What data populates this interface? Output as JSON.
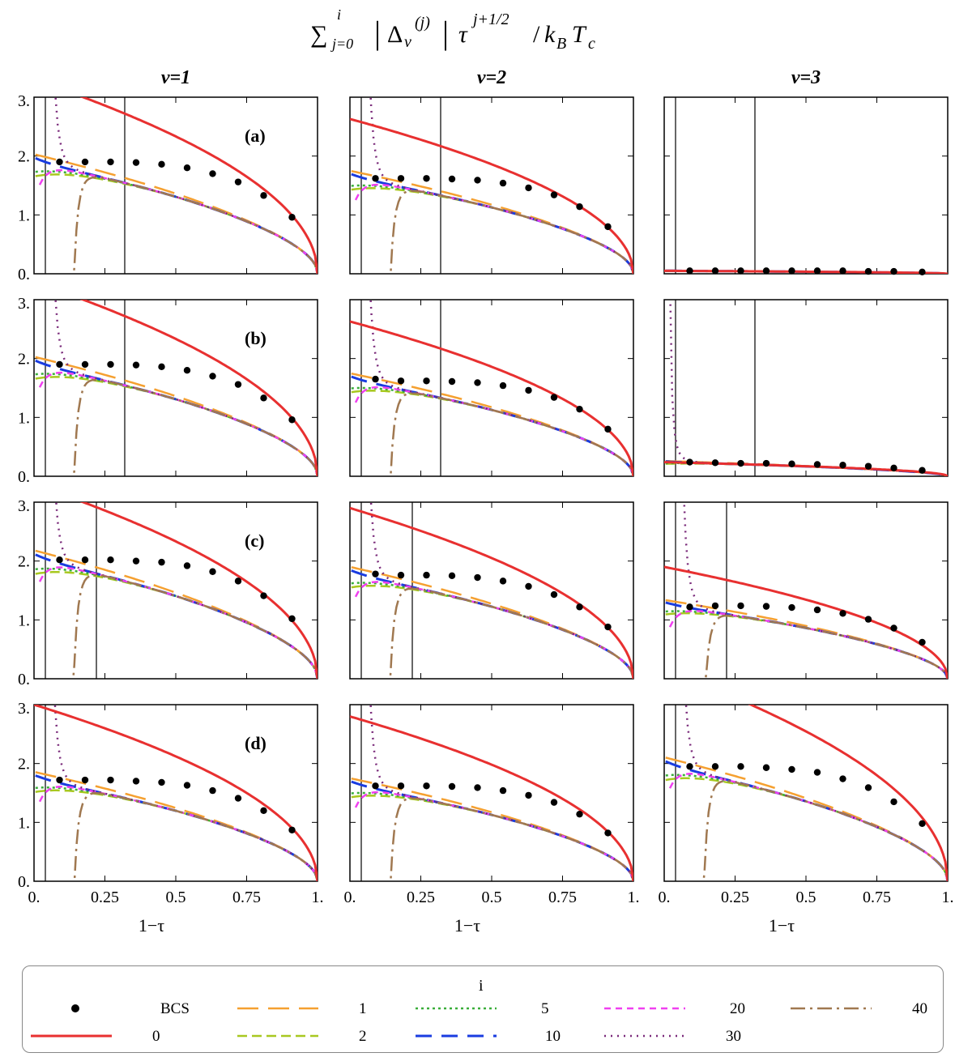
{
  "figure": {
    "title_parts": {
      "sum": "∑",
      "sub": "j=0",
      "sup": "i",
      "delta": "Δ",
      "nu": "ν",
      "j": "(j)",
      "tau": "τ",
      "exp": "j+1/2",
      "kb": "k",
      "B": "B",
      "T": "T",
      "c": "c"
    },
    "column_titles": [
      "ν=1",
      "ν=2",
      "ν=3"
    ],
    "row_labels": [
      "(a)",
      "(b)",
      "(c)",
      "(d)"
    ],
    "x_label": "1−τ",
    "x_ticks": [
      "0.",
      "0.25",
      "0.5",
      "0.75",
      "1."
    ],
    "y_ticks": [
      "0.",
      "1.",
      "2.",
      "3."
    ]
  },
  "legend": {
    "title": "i",
    "entries": [
      {
        "label": "BCS",
        "style": "dots",
        "color": "#000000"
      },
      {
        "label": "1",
        "style": "longdash",
        "color": "#f5a030"
      },
      {
        "label": "5",
        "style": "dotted-green",
        "color": "#3aae3a"
      },
      {
        "label": "20",
        "style": "dashed-magenta",
        "color": "#f040f0"
      },
      {
        "label": "40",
        "style": "dashdot",
        "color": "#a07850"
      },
      {
        "label": "0",
        "style": "solid",
        "color": "#e83030"
      },
      {
        "label": "2",
        "style": "dashed",
        "color": "#a8c820"
      },
      {
        "label": "10",
        "style": "bigdash",
        "color": "#1a3ce0"
      },
      {
        "label": "30",
        "style": "dots-purple",
        "color": "#7a2a7a"
      }
    ]
  },
  "chart_data": {
    "type": "line",
    "layout": "grid 4 rows x 3 columns",
    "xlabel": "1−τ",
    "xlim": [
      0,
      1
    ],
    "ylim": [
      0,
      3
    ],
    "series_names": [
      "BCS",
      "0",
      "1",
      "2",
      "5",
      "10",
      "20",
      "30",
      "40"
    ],
    "colors": {
      "BCS": "#000000",
      "0": "#e83030",
      "1": "#f5a030",
      "2": "#a8c820",
      "5": "#3aae3a",
      "10": "#1a3ce0",
      "20": "#f040f0",
      "30": "#7a2a7a",
      "40": "#a07850"
    },
    "panels": [
      {
        "row": "(a)",
        "col": "ν=1",
        "bcs_amp": 1.88,
        "i0_amp": 3.3,
        "vlines": [
          0.04,
          0.32
        ],
        "bcs_points": [
          [
            0.09,
            1.9
          ],
          [
            0.18,
            1.9
          ],
          [
            0.27,
            1.9
          ],
          [
            0.36,
            1.89
          ],
          [
            0.45,
            1.86
          ],
          [
            0.54,
            1.8
          ],
          [
            0.63,
            1.7
          ],
          [
            0.72,
            1.56
          ],
          [
            0.81,
            1.33
          ],
          [
            0.91,
            0.96
          ]
        ]
      },
      {
        "row": "(a)",
        "col": "ν=2",
        "bcs_amp": 1.62,
        "i0_amp": 2.63,
        "vlines": [
          0.04,
          0.32
        ],
        "bcs_points": [
          [
            0.09,
            1.62
          ],
          [
            0.18,
            1.62
          ],
          [
            0.27,
            1.62
          ],
          [
            0.36,
            1.61
          ],
          [
            0.45,
            1.59
          ],
          [
            0.54,
            1.54
          ],
          [
            0.63,
            1.46
          ],
          [
            0.72,
            1.34
          ],
          [
            0.81,
            1.14
          ],
          [
            0.91,
            0.8
          ]
        ]
      },
      {
        "row": "(a)",
        "col": "ν=3",
        "bcs_amp": 0.05,
        "i0_amp": 0.05,
        "vlines": [
          0.04,
          0.32
        ],
        "bcs_points": [
          [
            0.09,
            0.05
          ],
          [
            0.18,
            0.05
          ],
          [
            0.27,
            0.05
          ],
          [
            0.36,
            0.05
          ],
          [
            0.45,
            0.05
          ],
          [
            0.54,
            0.05
          ],
          [
            0.63,
            0.05
          ],
          [
            0.72,
            0.04
          ],
          [
            0.81,
            0.04
          ],
          [
            0.91,
            0.03
          ]
        ]
      },
      {
        "row": "(b)",
        "col": "ν=1",
        "bcs_amp": 1.88,
        "i0_amp": 3.3,
        "vlines": [
          0.04,
          0.32
        ],
        "bcs_points": [
          [
            0.09,
            1.9
          ],
          [
            0.18,
            1.9
          ],
          [
            0.27,
            1.9
          ],
          [
            0.36,
            1.89
          ],
          [
            0.45,
            1.86
          ],
          [
            0.54,
            1.8
          ],
          [
            0.63,
            1.7
          ],
          [
            0.72,
            1.56
          ],
          [
            0.81,
            1.33
          ],
          [
            0.91,
            0.96
          ]
        ]
      },
      {
        "row": "(b)",
        "col": "ν=2",
        "bcs_amp": 1.62,
        "i0_amp": 2.63,
        "vlines": [
          0.04,
          0.32
        ],
        "bcs_points": [
          [
            0.09,
            1.65
          ],
          [
            0.18,
            1.62
          ],
          [
            0.27,
            1.62
          ],
          [
            0.36,
            1.61
          ],
          [
            0.45,
            1.59
          ],
          [
            0.54,
            1.54
          ],
          [
            0.63,
            1.46
          ],
          [
            0.72,
            1.34
          ],
          [
            0.81,
            1.14
          ],
          [
            0.91,
            0.8
          ]
        ]
      },
      {
        "row": "(b)",
        "col": "ν=3",
        "bcs_amp": 0.24,
        "i0_amp": 0.24,
        "vlines": [
          0.04,
          0.32
        ],
        "bcs_points": [
          [
            0.09,
            0.24
          ],
          [
            0.18,
            0.23
          ],
          [
            0.27,
            0.22
          ],
          [
            0.36,
            0.22
          ],
          [
            0.45,
            0.21
          ],
          [
            0.54,
            0.2
          ],
          [
            0.63,
            0.19
          ],
          [
            0.72,
            0.17
          ],
          [
            0.81,
            0.14
          ],
          [
            0.91,
            0.1
          ]
        ]
      },
      {
        "row": "(c)",
        "col": "ν=1",
        "bcs_amp": 2.02,
        "i0_amp": 3.3,
        "vlines": [
          0.04,
          0.22
        ],
        "bcs_points": [
          [
            0.09,
            2.02
          ],
          [
            0.18,
            2.02
          ],
          [
            0.27,
            2.02
          ],
          [
            0.36,
            2.0
          ],
          [
            0.45,
            1.98
          ],
          [
            0.54,
            1.92
          ],
          [
            0.63,
            1.82
          ],
          [
            0.72,
            1.66
          ],
          [
            0.81,
            1.41
          ],
          [
            0.91,
            1.02
          ]
        ]
      },
      {
        "row": "(c)",
        "col": "ν=2",
        "bcs_amp": 1.76,
        "i0_amp": 2.9,
        "vlines": [
          0.04,
          0.22
        ],
        "bcs_points": [
          [
            0.09,
            1.78
          ],
          [
            0.18,
            1.76
          ],
          [
            0.27,
            1.76
          ],
          [
            0.36,
            1.75
          ],
          [
            0.45,
            1.72
          ],
          [
            0.54,
            1.66
          ],
          [
            0.63,
            1.57
          ],
          [
            0.72,
            1.43
          ],
          [
            0.81,
            1.22
          ],
          [
            0.91,
            0.88
          ]
        ]
      },
      {
        "row": "(c)",
        "col": "ν=3",
        "bcs_amp": 1.24,
        "i0_amp": 1.9,
        "vlines": [
          0.04,
          0.22
        ],
        "bcs_points": [
          [
            0.09,
            1.22
          ],
          [
            0.18,
            1.24
          ],
          [
            0.27,
            1.24
          ],
          [
            0.36,
            1.23
          ],
          [
            0.45,
            1.21
          ],
          [
            0.54,
            1.17
          ],
          [
            0.63,
            1.11
          ],
          [
            0.72,
            1.01
          ],
          [
            0.81,
            0.86
          ],
          [
            0.91,
            0.62
          ]
        ]
      },
      {
        "row": "(d)",
        "col": "ν=1",
        "bcs_amp": 1.72,
        "i0_amp": 3.0,
        "vlines": [
          0.04
        ],
        "bcs_points": [
          [
            0.09,
            1.72
          ],
          [
            0.18,
            1.72
          ],
          [
            0.27,
            1.72
          ],
          [
            0.36,
            1.7
          ],
          [
            0.45,
            1.68
          ],
          [
            0.54,
            1.63
          ],
          [
            0.63,
            1.54
          ],
          [
            0.72,
            1.41
          ],
          [
            0.81,
            1.2
          ],
          [
            0.91,
            0.87
          ]
        ]
      },
      {
        "row": "(d)",
        "col": "ν=2",
        "bcs_amp": 1.62,
        "i0_amp": 2.8,
        "vlines": [
          0.04
        ],
        "bcs_points": [
          [
            0.09,
            1.62
          ],
          [
            0.18,
            1.62
          ],
          [
            0.27,
            1.62
          ],
          [
            0.36,
            1.61
          ],
          [
            0.45,
            1.59
          ],
          [
            0.54,
            1.54
          ],
          [
            0.63,
            1.46
          ],
          [
            0.72,
            1.34
          ],
          [
            0.81,
            1.14
          ],
          [
            0.91,
            0.82
          ]
        ]
      },
      {
        "row": "(d)",
        "col": "ν=3",
        "bcs_amp": 1.95,
        "i0_amp": 3.6,
        "vlines": [
          0.04
        ],
        "bcs_points": [
          [
            0.09,
            1.95
          ],
          [
            0.18,
            1.95
          ],
          [
            0.27,
            1.95
          ],
          [
            0.36,
            1.93
          ],
          [
            0.45,
            1.9
          ],
          [
            0.54,
            1.85
          ],
          [
            0.63,
            1.74
          ],
          [
            0.72,
            1.59
          ],
          [
            0.81,
            1.35
          ],
          [
            0.91,
            0.98
          ]
        ]
      }
    ]
  }
}
